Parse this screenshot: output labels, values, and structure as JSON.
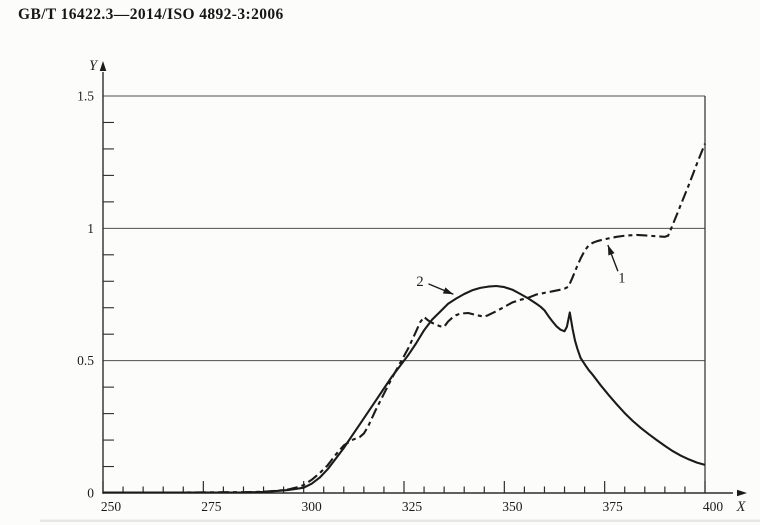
{
  "header": {
    "title": "GB/T 16422.3—2014/ISO 4892-3:2006"
  },
  "colors": {
    "paper": "#fcfcfa",
    "curve": "#1b1b1b",
    "grid": "#4e4e4e",
    "axis": "#2d2d2d",
    "text": "#1c1c1c",
    "scan_shadow": "#d8d6d1"
  },
  "chart_data": {
    "type": "line",
    "title": "",
    "xlabel": "X",
    "ylabel": "Y",
    "xlim": [
      250,
      400
    ],
    "ylim": [
      0,
      1.5
    ],
    "x_major_ticks": [
      250,
      275,
      300,
      325,
      350,
      375,
      400
    ],
    "x_tick_labels": [
      "250",
      "275",
      "300",
      "325",
      "350",
      "375",
      "400"
    ],
    "x_minor_tick_step": 5,
    "y_labeled_ticks": [
      [
        0,
        "0"
      ],
      [
        0.5,
        "0.5"
      ],
      [
        1,
        "1"
      ],
      [
        1.5,
        "1.5"
      ]
    ],
    "y_minor_tick_step": 0.1,
    "y_gridline_values": [
      0.5,
      1.0,
      1.5
    ],
    "grid": "horizontal-only",
    "legend_position": "none",
    "series": [
      {
        "id": "1",
        "name": "curve 1",
        "line_style": "dashed",
        "points": [
          [
            250,
            0.002
          ],
          [
            260,
            0.002
          ],
          [
            270,
            0.002
          ],
          [
            280,
            0.003
          ],
          [
            285,
            0.003
          ],
          [
            290,
            0.005
          ],
          [
            293,
            0.008
          ],
          [
            296,
            0.013
          ],
          [
            298,
            0.02
          ],
          [
            300,
            0.03
          ],
          [
            302,
            0.05
          ],
          [
            304,
            0.075
          ],
          [
            306,
            0.105
          ],
          [
            308,
            0.145
          ],
          [
            310,
            0.18
          ],
          [
            312,
            0.2
          ],
          [
            314,
            0.212
          ],
          [
            315,
            0.225
          ],
          [
            316,
            0.25
          ],
          [
            318,
            0.315
          ],
          [
            320,
            0.375
          ],
          [
            322,
            0.435
          ],
          [
            324,
            0.49
          ],
          [
            326,
            0.545
          ],
          [
            328,
            0.61
          ],
          [
            329,
            0.645
          ],
          [
            330,
            0.665
          ],
          [
            331,
            0.652
          ],
          [
            332,
            0.643
          ],
          [
            333,
            0.636
          ],
          [
            334,
            0.63
          ],
          [
            335,
            0.628
          ],
          [
            336,
            0.648
          ],
          [
            337,
            0.662
          ],
          [
            338,
            0.672
          ],
          [
            339,
            0.678
          ],
          [
            341,
            0.68
          ],
          [
            343,
            0.672
          ],
          [
            345,
            0.666
          ],
          [
            346,
            0.672
          ],
          [
            348,
            0.687
          ],
          [
            350,
            0.703
          ],
          [
            352,
            0.72
          ],
          [
            354,
            0.73
          ],
          [
            356,
            0.738
          ],
          [
            358,
            0.75
          ],
          [
            360,
            0.756
          ],
          [
            362,
            0.762
          ],
          [
            364,
            0.768
          ],
          [
            365,
            0.772
          ],
          [
            366,
            0.78
          ],
          [
            367,
            0.815
          ],
          [
            368,
            0.852
          ],
          [
            369,
            0.886
          ],
          [
            370,
            0.915
          ],
          [
            371,
            0.935
          ],
          [
            372,
            0.945
          ],
          [
            373,
            0.951
          ],
          [
            374,
            0.955
          ],
          [
            376,
            0.962
          ],
          [
            378,
            0.968
          ],
          [
            380,
            0.972
          ],
          [
            383,
            0.975
          ],
          [
            386,
            0.972
          ],
          [
            388,
            0.97
          ],
          [
            390,
            0.968
          ],
          [
            390.8,
            0.972
          ],
          [
            392,
            1.015
          ],
          [
            394,
            1.09
          ],
          [
            396,
            1.165
          ],
          [
            398,
            1.245
          ],
          [
            400,
            1.32
          ]
        ]
      },
      {
        "id": "2",
        "name": "curve 2",
        "line_style": "solid",
        "points": [
          [
            250,
            0.002
          ],
          [
            260,
            0.002
          ],
          [
            270,
            0.002
          ],
          [
            280,
            0.002
          ],
          [
            285,
            0.002
          ],
          [
            290,
            0.004
          ],
          [
            293,
            0.007
          ],
          [
            296,
            0.011
          ],
          [
            298,
            0.015
          ],
          [
            300,
            0.02
          ],
          [
            302,
            0.035
          ],
          [
            304,
            0.058
          ],
          [
            306,
            0.09
          ],
          [
            308,
            0.13
          ],
          [
            310,
            0.17
          ],
          [
            312,
            0.215
          ],
          [
            314,
            0.26
          ],
          [
            316,
            0.305
          ],
          [
            318,
            0.35
          ],
          [
            320,
            0.395
          ],
          [
            322,
            0.44
          ],
          [
            324,
            0.48
          ],
          [
            326,
            0.52
          ],
          [
            328,
            0.565
          ],
          [
            330,
            0.615
          ],
          [
            332,
            0.655
          ],
          [
            334,
            0.685
          ],
          [
            336,
            0.715
          ],
          [
            338,
            0.735
          ],
          [
            340,
            0.752
          ],
          [
            342,
            0.766
          ],
          [
            344,
            0.775
          ],
          [
            346,
            0.78
          ],
          [
            348,
            0.782
          ],
          [
            350,
            0.778
          ],
          [
            352,
            0.768
          ],
          [
            354,
            0.752
          ],
          [
            356,
            0.735
          ],
          [
            357,
            0.725
          ],
          [
            358,
            0.715
          ],
          [
            359,
            0.704
          ],
          [
            360,
            0.69
          ],
          [
            361,
            0.668
          ],
          [
            362,
            0.648
          ],
          [
            363,
            0.63
          ],
          [
            364,
            0.617
          ],
          [
            365,
            0.611
          ],
          [
            365.6,
            0.628
          ],
          [
            366.3,
            0.682
          ],
          [
            367,
            0.62
          ],
          [
            367.6,
            0.576
          ],
          [
            368.2,
            0.545
          ],
          [
            369,
            0.51
          ],
          [
            370,
            0.487
          ],
          [
            371,
            0.465
          ],
          [
            372,
            0.447
          ],
          [
            374,
            0.407
          ],
          [
            376,
            0.37
          ],
          [
            378,
            0.335
          ],
          [
            380,
            0.302
          ],
          [
            382,
            0.272
          ],
          [
            384,
            0.246
          ],
          [
            386,
            0.222
          ],
          [
            388,
            0.2
          ],
          [
            390,
            0.178
          ],
          [
            392,
            0.158
          ],
          [
            394,
            0.141
          ],
          [
            396,
            0.127
          ],
          [
            398,
            0.115
          ],
          [
            400,
            0.106
          ]
        ]
      }
    ],
    "annotations": [
      {
        "text": "1",
        "series": "1",
        "text_xy": [
          379.3,
          0.815
        ],
        "arrow_from": [
          378.3,
          0.838
        ],
        "arrow_to": [
          375.8,
          0.937
        ]
      },
      {
        "text": "2",
        "series": "2",
        "text_xy": [
          329.0,
          0.801
        ],
        "arrow_from": [
          331.1,
          0.79
        ],
        "arrow_to": [
          337.3,
          0.751
        ]
      }
    ]
  }
}
